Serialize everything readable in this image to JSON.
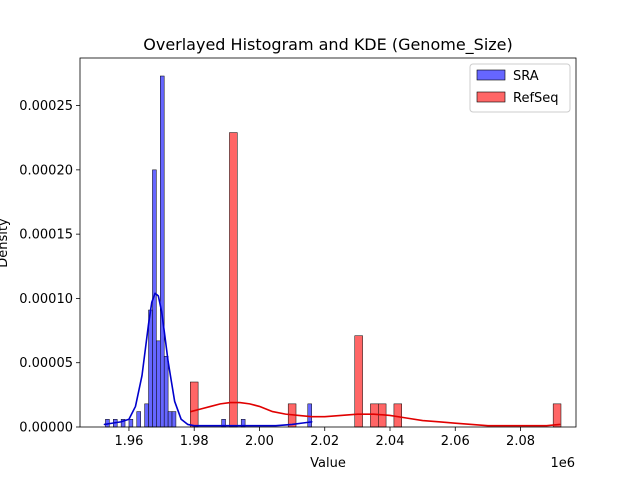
{
  "chart_data": {
    "type": "histogram",
    "title": "Overlayed Histogram and KDE (Genome_Size)",
    "xlabel": "Value",
    "ylabel": "Density",
    "x_offset_label": "1e6",
    "x_unit_scale": 1000000,
    "xlim": [
      1945000,
      2097000
    ],
    "ylim": [
      0,
      0.000287
    ],
    "xticks": [
      1960000,
      1980000,
      2000000,
      2020000,
      2040000,
      2060000,
      2080000
    ],
    "xtick_labels": [
      "1.96",
      "1.98",
      "2.00",
      "2.02",
      "2.04",
      "2.06",
      "2.08"
    ],
    "yticks": [
      0,
      5e-05,
      0.0001,
      0.00015,
      0.0002,
      0.00025
    ],
    "ytick_labels": [
      "0.00000",
      "0.00005",
      "0.00010",
      "0.00015",
      "0.00020",
      "0.00025"
    ],
    "legend": {
      "placement": "top-right"
    },
    "series": [
      {
        "name": "SRA",
        "color": "#0000ff",
        "fill_color": "#6666ff",
        "kde_color": "#0000cc",
        "bins": [
          {
            "x0": 1952800,
            "x1": 1954000,
            "density": 6e-06
          },
          {
            "x0": 1955200,
            "x1": 1956400,
            "density": 6e-06
          },
          {
            "x0": 1957600,
            "x1": 1958800,
            "density": 6e-06
          },
          {
            "x0": 1960000,
            "x1": 1961200,
            "density": 6e-06
          },
          {
            "x0": 1962400,
            "x1": 1963600,
            "density": 1.2e-05
          },
          {
            "x0": 1964800,
            "x1": 1966000,
            "density": 1.8e-05
          },
          {
            "x0": 1966000,
            "x1": 1967200,
            "density": 9.1e-05
          },
          {
            "x0": 1967200,
            "x1": 1968400,
            "density": 0.0002
          },
          {
            "x0": 1968400,
            "x1": 1969600,
            "density": 6.7e-05
          },
          {
            "x0": 1969600,
            "x1": 1970800,
            "density": 0.000273
          },
          {
            "x0": 1970800,
            "x1": 1972000,
            "density": 5.5e-05
          },
          {
            "x0": 1972000,
            "x1": 1973200,
            "density": 1.2e-05
          },
          {
            "x0": 1973200,
            "x1": 1974400,
            "density": 1.2e-05
          },
          {
            "x0": 1988400,
            "x1": 1989600,
            "density": 6e-06
          },
          {
            "x0": 1994400,
            "x1": 1995600,
            "density": 6e-06
          },
          {
            "x0": 2014800,
            "x1": 2016000,
            "density": 1.8e-05
          }
        ],
        "kde": {
          "x": [
            1952500,
            1955000,
            1957500,
            1960000,
            1962000,
            1964000,
            1966000,
            1967000,
            1968000,
            1969000,
            1970000,
            1971000,
            1972000,
            1974000,
            1976000,
            1978000,
            1980000,
            1985000,
            1990000,
            1995000,
            2000000,
            2005000,
            2010000,
            2013000,
            2016000
          ],
          "y": [
            2e-06,
            3e-06,
            4e-06,
            6e-06,
            1.6e-05,
            4e-05,
            8e-05,
            9.7e-05,
            0.000104,
            0.000102,
            9e-05,
            7.1e-05,
            5.1e-05,
            2e-05,
            6e-06,
            2e-06,
            1e-06,
            1e-06,
            1e-06,
            1e-06,
            1e-06,
            1e-06,
            2e-06,
            3e-06,
            4e-06
          ]
        }
      },
      {
        "name": "RefSeq",
        "color": "#ff0000",
        "fill_color": "#ff6666",
        "kde_color": "#e00000",
        "bins": [
          {
            "x0": 1978800,
            "x1": 1981200,
            "density": 3.5e-05
          },
          {
            "x0": 1990800,
            "x1": 1993200,
            "density": 0.000229
          },
          {
            "x0": 2008800,
            "x1": 2011200,
            "density": 1.8e-05
          },
          {
            "x0": 2029200,
            "x1": 2031600,
            "density": 7.1e-05
          },
          {
            "x0": 2034000,
            "x1": 2036400,
            "density": 1.8e-05
          },
          {
            "x0": 2036400,
            "x1": 2038800,
            "density": 1.8e-05
          },
          {
            "x0": 2041200,
            "x1": 2043600,
            "density": 1.8e-05
          },
          {
            "x0": 2090000,
            "x1": 2092400,
            "density": 1.8e-05
          }
        ],
        "kde": {
          "x": [
            1979000,
            1982000,
            1985000,
            1988000,
            1991000,
            1994000,
            1997000,
            2000000,
            2004000,
            2008000,
            2012000,
            2016000,
            2020000,
            2025000,
            2030000,
            2035000,
            2040000,
            2045000,
            2050000,
            2055000,
            2060000,
            2065000,
            2070000,
            2075000,
            2080000,
            2085000,
            2088000,
            2092000
          ],
          "y": [
            1.2e-05,
            1.4e-05,
            1.6e-05,
            1.8e-05,
            1.9e-05,
            1.9e-05,
            1.8e-05,
            1.6e-05,
            1.2e-05,
            1e-05,
            9e-06,
            8e-06,
            8e-06,
            9e-06,
            1e-05,
            1e-05,
            9e-06,
            7e-06,
            5e-06,
            4e-06,
            3e-06,
            2e-06,
            1e-06,
            1e-06,
            1e-06,
            1e-06,
            1e-06,
            2e-06
          ]
        }
      }
    ]
  }
}
